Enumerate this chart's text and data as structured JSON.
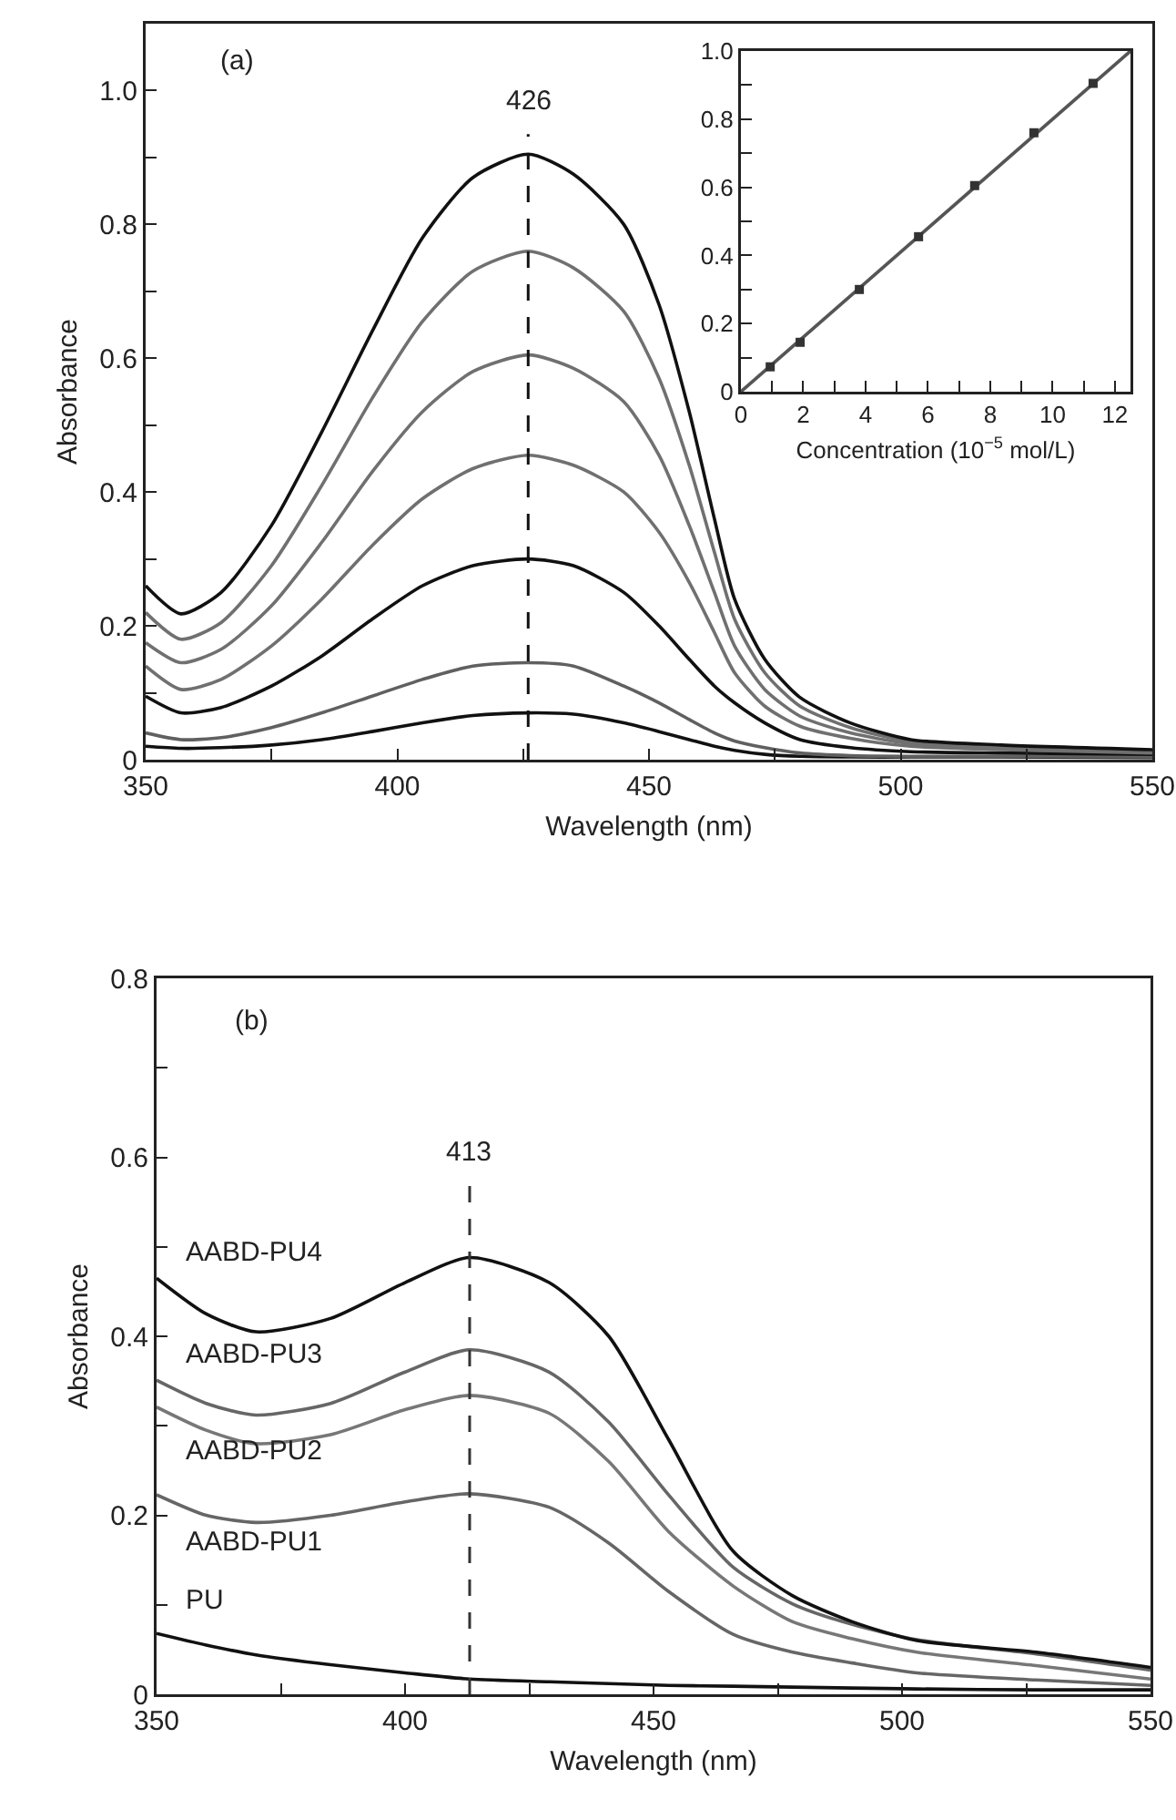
{
  "chart_data": [
    {
      "type": "line",
      "xlabel": "Wavelength (nm)",
      "ylabel": "Absorbance",
      "annotations": [
        "(a)"
      ],
      "xlim": [
        350,
        550
      ],
      "xticks": [
        350,
        {
          "value": 375,
          "label": null
        },
        400,
        {
          "value": 425,
          "label": null
        },
        450,
        {
          "value": 475,
          "label": null
        },
        500,
        {
          "value": 525,
          "label": null
        },
        550
      ],
      "ylim": [
        0,
        1.1
      ],
      "yticks": [
        0,
        {
          "value": 0.1,
          "label": null
        },
        0.2,
        {
          "value": 0.3,
          "label": null
        },
        0.4,
        {
          "value": 0.5,
          "label": null
        },
        0.6,
        {
          "value": 0.7,
          "label": null
        },
        0.8,
        {
          "value": 0.9,
          "label": null
        },
        {
          "value": 1.0,
          "label": "1.0"
        }
      ],
      "x": [
        350,
        357,
        365,
        375,
        385,
        395,
        405,
        415,
        426,
        435,
        445,
        452,
        458,
        463,
        467,
        473,
        480,
        490,
        502,
        520,
        550
      ],
      "series": [
        {
          "color": "#111111",
          "values": [
            0.26,
            0.218,
            0.25,
            0.35,
            0.49,
            0.64,
            0.78,
            0.87,
            0.905,
            0.875,
            0.8,
            0.68,
            0.52,
            0.36,
            0.24,
            0.15,
            0.093,
            0.055,
            0.03,
            0.022,
            0.015
          ]
        },
        {
          "color": "#707070",
          "values": [
            0.22,
            0.18,
            0.205,
            0.29,
            0.41,
            0.54,
            0.655,
            0.73,
            0.76,
            0.735,
            0.67,
            0.57,
            0.44,
            0.31,
            0.21,
            0.13,
            0.08,
            0.048,
            0.027,
            0.02,
            0.013
          ]
        },
        {
          "color": "#707070",
          "values": [
            0.175,
            0.145,
            0.165,
            0.23,
            0.325,
            0.43,
            0.52,
            0.58,
            0.605,
            0.585,
            0.535,
            0.455,
            0.35,
            0.25,
            0.17,
            0.105,
            0.065,
            0.04,
            0.024,
            0.018,
            0.012
          ]
        },
        {
          "color": "#707070",
          "values": [
            0.14,
            0.105,
            0.12,
            0.17,
            0.24,
            0.32,
            0.39,
            0.435,
            0.455,
            0.44,
            0.4,
            0.34,
            0.265,
            0.19,
            0.13,
            0.08,
            0.05,
            0.032,
            0.02,
            0.015,
            0.01
          ]
        },
        {
          "color": "#111111",
          "values": [
            0.095,
            0.07,
            0.078,
            0.11,
            0.155,
            0.21,
            0.26,
            0.29,
            0.3,
            0.29,
            0.25,
            0.2,
            0.15,
            0.11,
            0.085,
            0.055,
            0.03,
            0.018,
            0.012,
            0.01,
            0.008
          ]
        },
        {
          "color": "#606060",
          "values": [
            0.04,
            0.03,
            0.033,
            0.048,
            0.07,
            0.095,
            0.12,
            0.14,
            0.145,
            0.14,
            0.11,
            0.085,
            0.06,
            0.04,
            0.028,
            0.018,
            0.01,
            0.006,
            0.005,
            0.005,
            0.004
          ]
        },
        {
          "color": "#111111",
          "values": [
            0.02,
            0.017,
            0.018,
            0.022,
            0.03,
            0.042,
            0.055,
            0.066,
            0.07,
            0.068,
            0.055,
            0.042,
            0.03,
            0.02,
            0.014,
            0.008,
            0.005,
            0.004,
            0.004,
            0.004,
            0.003
          ]
        }
      ],
      "ref_lines": [
        {
          "axis": "x",
          "value": 426,
          "label": "426",
          "line_style": "dashed",
          "color": "#111111"
        }
      ]
    },
    {
      "type": "scatter",
      "xlabel": "Concentration (10$^{−5}$ mol/L)",
      "marker": "square",
      "xlim": [
        0,
        12.5
      ],
      "xticks": [
        0,
        {
          "value": 1,
          "label": null
        },
        2,
        {
          "value": 3,
          "label": null
        },
        4,
        {
          "value": 5,
          "label": null
        },
        6,
        {
          "value": 7,
          "label": null
        },
        8,
        {
          "value": 9,
          "label": null
        },
        10,
        {
          "value": 11,
          "label": null
        },
        12
      ],
      "ylim": [
        0,
        1.0
      ],
      "yticks": [
        0,
        {
          "value": 0.1,
          "label": null
        },
        0.2,
        {
          "value": 0.3,
          "label": null
        },
        0.4,
        {
          "value": 0.5,
          "label": null
        },
        0.6,
        {
          "value": 0.7,
          "label": null
        },
        0.8,
        {
          "value": 0.9,
          "label": null
        },
        {
          "value": 1.0,
          "label": "1.0"
        }
      ],
      "series": [
        {
          "color": "#333333",
          "x": [
            0.94,
            1.9,
            3.8,
            5.7,
            7.5,
            9.4,
            11.3
          ],
          "values": [
            0.073,
            0.145,
            0.3,
            0.455,
            0.605,
            0.76,
            0.905
          ]
        },
        {
          "type": "line",
          "marker": "none",
          "color": "#555555",
          "x": [
            0,
            12.5
          ],
          "values": [
            0,
            1.0
          ]
        }
      ]
    },
    {
      "type": "line",
      "xlabel": "Wavelength (nm)",
      "ylabel": "Absorbance",
      "annotations": [
        "(b)"
      ],
      "xlim": [
        350,
        550
      ],
      "xticks": [
        350,
        {
          "value": 375,
          "label": null
        },
        400,
        {
          "value": 425,
          "label": null
        },
        450,
        {
          "value": 475,
          "label": null
        },
        500,
        {
          "value": 525,
          "label": null
        },
        550
      ],
      "ylim": [
        0,
        0.8
      ],
      "yticks": [
        0,
        {
          "value": 0.1,
          "label": null
        },
        0.2,
        {
          "value": 0.3,
          "label": null
        },
        0.4,
        {
          "value": 0.5,
          "label": null
        },
        0.6,
        {
          "value": 0.7,
          "label": null
        },
        0.8
      ],
      "x": [
        350,
        360,
        370,
        385,
        400,
        413,
        429,
        441,
        453,
        466,
        478,
        490,
        503,
        527,
        550
      ],
      "series": [
        {
          "name": "AABD-PU4",
          "color": "#111111",
          "values": [
            0.465,
            0.425,
            0.405,
            0.42,
            0.46,
            0.488,
            0.46,
            0.4,
            0.285,
            0.16,
            0.11,
            0.081,
            0.06,
            0.047,
            0.03
          ]
        },
        {
          "name": "AABD-PU3",
          "color": "#666666",
          "values": [
            0.351,
            0.325,
            0.312,
            0.325,
            0.36,
            0.385,
            0.36,
            0.304,
            0.223,
            0.142,
            0.101,
            0.078,
            0.061,
            0.045,
            0.027
          ]
        },
        {
          "name": "AABD-PU2",
          "color": "#777777",
          "values": [
            0.321,
            0.295,
            0.28,
            0.29,
            0.318,
            0.334,
            0.314,
            0.26,
            0.182,
            0.121,
            0.081,
            0.062,
            0.047,
            0.032,
            0.017
          ]
        },
        {
          "name": "AABD-PU1",
          "color": "#666666",
          "values": [
            0.223,
            0.2,
            0.192,
            0.2,
            0.215,
            0.224,
            0.209,
            0.169,
            0.115,
            0.067,
            0.047,
            0.035,
            0.024,
            0.016,
            0.01
          ]
        },
        {
          "name": "PU",
          "color": "#111111",
          "values": [
            0.068,
            0.055,
            0.044,
            0.033,
            0.024,
            0.017,
            0.014,
            0.012,
            0.01,
            0.009,
            0.008,
            0.007,
            0.006,
            0.005,
            0.005
          ]
        }
      ],
      "ref_lines": [
        {
          "axis": "x",
          "value": 413,
          "label": "413",
          "line_style": "dashed",
          "color": "#333333"
        }
      ]
    }
  ]
}
